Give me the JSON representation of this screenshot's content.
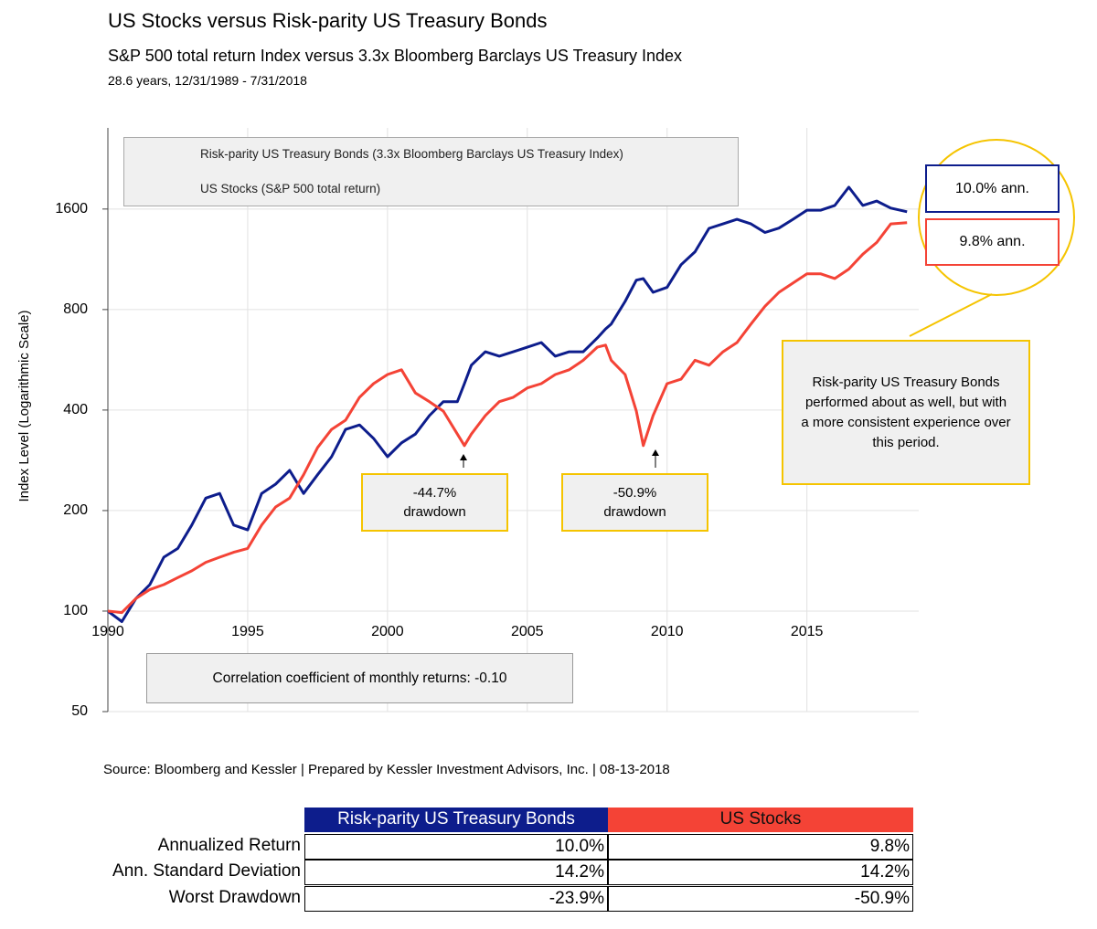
{
  "chart_data": {
    "type": "line",
    "title": "US Stocks versus Risk-parity US Treasury Bonds",
    "subtitle": "S&P 500 total return Index versus 3.3x Bloomberg Barclays US Treasury Index",
    "period": "28.6 years, 12/31/1989 - 7/31/2018",
    "ylabel": "Index Level (Logarithmic Scale)",
    "log_scale": true,
    "grid": true,
    "legend": "upper left",
    "xlim": [
      1990,
      2019
    ],
    "xticks": [
      1990,
      1995,
      2000,
      2005,
      2010,
      2015
    ],
    "ylim": [
      50,
      2800
    ],
    "yticks": [
      50,
      100,
      200,
      400,
      800,
      1600
    ],
    "x": [
      1990,
      1990.5,
      1991,
      1991.5,
      1992,
      1992.5,
      1993,
      1993.5,
      1994,
      1994.5,
      1995,
      1995.5,
      1996,
      1996.5,
      1997,
      1997.5,
      1998,
      1998.5,
      1999,
      1999.5,
      2000,
      2000.5,
      2001,
      2001.5,
      2002,
      2002.5,
      2002.75,
      2003,
      2003.5,
      2004,
      2004.5,
      2005,
      2005.5,
      2006,
      2006.5,
      2007,
      2007.5,
      2007.8,
      2008,
      2008.5,
      2008.9,
      2009.15,
      2009.5,
      2010,
      2010.5,
      2011,
      2011.5,
      2012,
      2012.5,
      2013,
      2013.5,
      2014,
      2014.5,
      2015,
      2015.5,
      2016,
      2016.5,
      2017,
      2017.5,
      2018,
      2018.58
    ],
    "series": [
      {
        "name": "Risk-parity US Treasury Bonds (3.3x Bloomberg Barclays US Treasury Index)",
        "color": "#0d1d8c",
        "values": [
          100,
          93,
          109,
          120,
          145,
          154,
          181,
          218,
          225,
          181,
          175,
          225,
          240,
          264,
          225,
          256,
          290,
          350,
          361,
          329,
          290,
          319,
          339,
          385,
          424,
          424,
          480,
          545,
          598,
          580,
          598,
          617,
          637,
          580,
          598,
          598,
          657,
          700,
          724,
          846,
          980,
          990,
          901,
          932,
          1090,
          1192,
          1400,
          1444,
          1490,
          1444,
          1361,
          1403,
          1490,
          1587,
          1587,
          1640,
          1860,
          1640,
          1690,
          1610,
          1570
        ]
      },
      {
        "name": "US Stocks (S&P 500 total return)",
        "color": "#f44336",
        "values": [
          100,
          99,
          109,
          116,
          120,
          126,
          132,
          140,
          145,
          150,
          154,
          181,
          205,
          218,
          256,
          309,
          350,
          373,
          437,
          480,
          511,
          528,
          450,
          424,
          397,
          339,
          313,
          339,
          385,
          424,
          437,
          466,
          480,
          511,
          528,
          564,
          617,
          626,
          564,
          511,
          397,
          313,
          385,
          480,
          495,
          564,
          545,
          598,
          637,
          724,
          818,
          901,
          960,
          1023,
          1023,
          991,
          1057,
          1172,
          1271,
          1444,
          1457
        ]
      }
    ],
    "annotations": {
      "bonds_ann": "10.0% ann.",
      "stocks_ann": "9.8% ann.",
      "callout": "Risk-parity US Treasury Bonds performed about as well, but with a more consistent experience over this period.",
      "drawdown_1": [
        "-44.7%",
        "drawdown"
      ],
      "drawdown_2": [
        "-50.9%",
        "drawdown"
      ],
      "correlation": "Correlation coefficient of monthly returns: -0.10"
    },
    "source": "Source: Bloomberg and Kessler | Prepared by Kessler Investment Advisors, Inc. | 08-13-2018"
  },
  "table": {
    "headers": [
      "Risk-parity US Treasury Bonds",
      "US Stocks"
    ],
    "rows": [
      [
        "Annualized Return",
        "10.0%",
        "9.8%"
      ],
      [
        "Ann. Standard Deviation",
        "14.2%",
        "14.2%"
      ],
      [
        "Worst Drawdown",
        "-23.9%",
        "-50.9%"
      ]
    ]
  }
}
